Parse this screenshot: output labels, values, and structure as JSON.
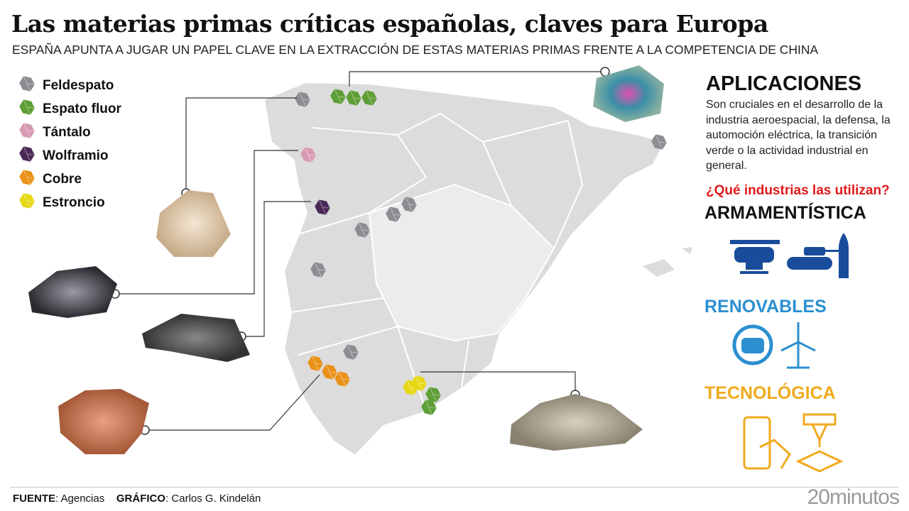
{
  "title": "Las materias primas críticas españolas, claves para Europa",
  "subtitle": "ESPAÑA APUNTA A JUGAR UN PAPEL CLAVE EN LA EXTRACCIÓN DE ESTAS MATERIAS PRIMAS FRENTE A LA COMPETENCIA DE CHINA",
  "legend": [
    {
      "label": "Feldespato",
      "color": "#8c8c92"
    },
    {
      "label": "Espato fluor",
      "color": "#5e9e36"
    },
    {
      "label": "Tántalo",
      "color": "#d89bb4"
    },
    {
      "label": "Wolframio",
      "color": "#4a2856"
    },
    {
      "label": "Cobre",
      "color": "#ea9218"
    },
    {
      "label": "Estroncio",
      "color": "#e7d816"
    }
  ],
  "applications": {
    "title": "APLICACIONES",
    "text": "Son cruciales en el desarrollo de la industria aeroespacial, la defensa, la automoción eléctrica, la transición verde o la actividad industrial en general.",
    "question": "¿Qué industrias las utilizan?",
    "categories": [
      {
        "label": "ARMAMENTÍSTICA",
        "color": "#111111",
        "icons": [
          "helicopter-icon",
          "tank-icon",
          "bullet-icon"
        ],
        "icon_color": "#1a4c9c"
      },
      {
        "label": "RENOVABLES",
        "color": "#2b8fd0",
        "icons": [
          "electric-car-icon",
          "wind-turbine-icon"
        ]
      },
      {
        "label": "TECNOLÓGICA",
        "color": "#f0aa1e",
        "icons": [
          "smartphone-icon",
          "3d-printer-icon"
        ]
      }
    ]
  },
  "footer": {
    "source_label": "FUENTE",
    "source": ": Agencias",
    "graphic_label": "GRÁFICO",
    "graphic": ": Carlos G. Kindelán",
    "logo": "20minutos"
  }
}
